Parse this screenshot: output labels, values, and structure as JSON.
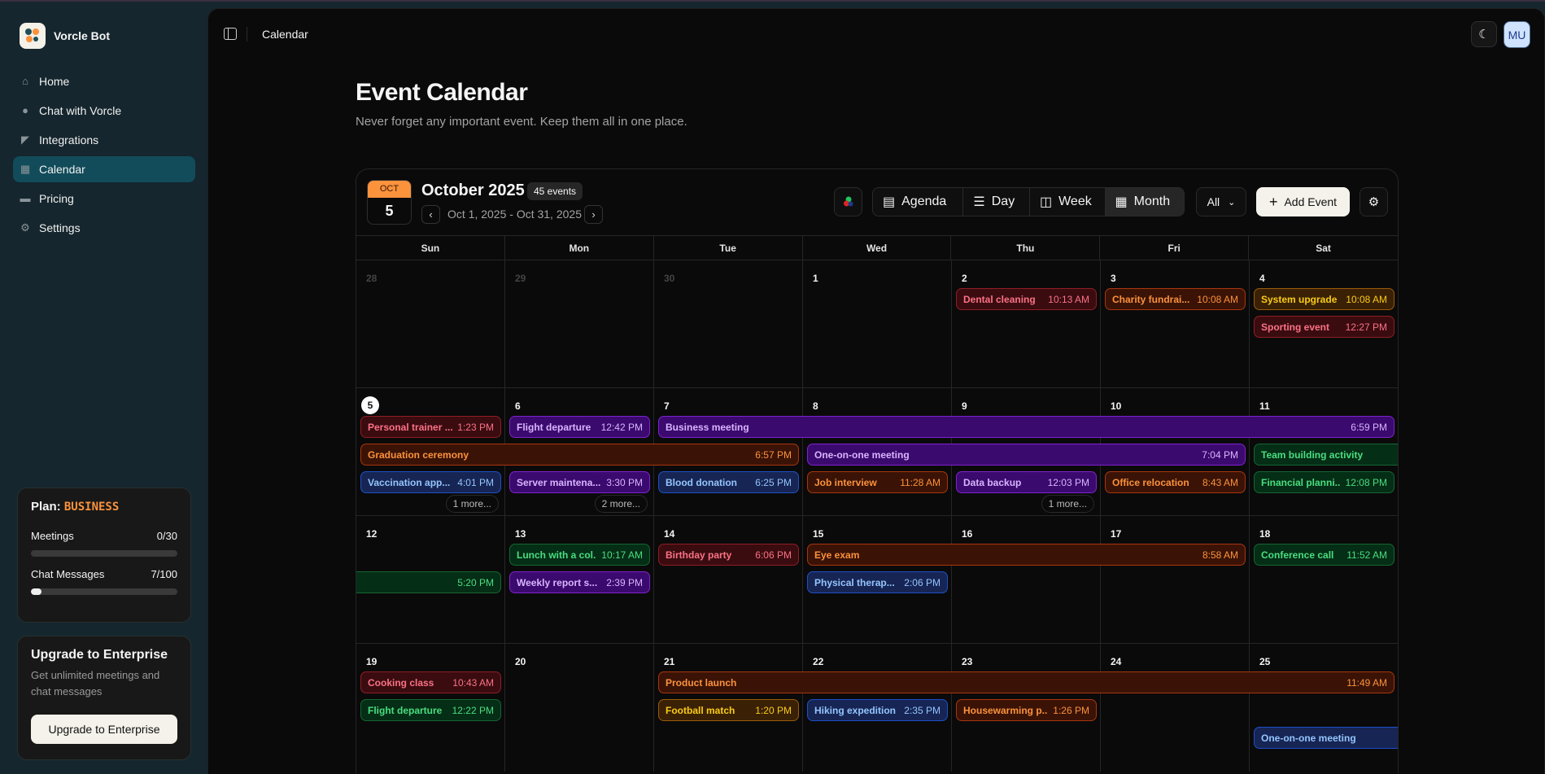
{
  "sidebar": {
    "brand": "Vorcle Bot",
    "items": [
      {
        "label": "Home",
        "icon": "home-icon",
        "active": false
      },
      {
        "label": "Chat with Vorcle",
        "icon": "chat-icon",
        "active": false
      },
      {
        "label": "Integrations",
        "icon": "integrations-icon",
        "active": false
      },
      {
        "label": "Calendar",
        "icon": "calendar-icon",
        "active": true
      },
      {
        "label": "Pricing",
        "icon": "wallet-icon",
        "active": false
      },
      {
        "label": "Settings",
        "icon": "gear-icon",
        "active": false
      }
    ],
    "plan": {
      "label": "Plan:",
      "name": "BUSINESS",
      "meetings": {
        "label": "Meetings",
        "value": "0/30",
        "fraction": 0
      },
      "chat": {
        "label": "Chat Messages",
        "value": "7/100",
        "fraction": 0.07
      }
    },
    "upgrade": {
      "title": "Upgrade to Enterprise",
      "description": "Get unlimited meetings and chat messages",
      "button": "Upgrade to Enterprise"
    }
  },
  "topbar": {
    "breadcrumb": "Calendar",
    "avatar": "MU",
    "theme_icon": "moon-icon"
  },
  "page": {
    "title": "Event Calendar",
    "subtitle": "Never forget any important event. Keep them all in one place."
  },
  "calendar": {
    "badge_month": "OCT",
    "badge_day": "5",
    "title": "October 2025",
    "event_count": "45 events",
    "range": "Oct 1, 2025 - Oct 31, 2025",
    "views": [
      {
        "label": "Agenda",
        "icon": "calendar-icon"
      },
      {
        "label": "Day",
        "icon": "list-icon"
      },
      {
        "label": "Week",
        "icon": "columns-icon"
      },
      {
        "label": "Month",
        "icon": "grid-icon"
      }
    ],
    "active_view": "Month",
    "filter": "All",
    "add_label": "Add Event",
    "weekdays": [
      "Sun",
      "Mon",
      "Tue",
      "Wed",
      "Thu",
      "Fri",
      "Sat"
    ],
    "today": "5",
    "weeks": [
      [
        {
          "d": "28",
          "muted": true
        },
        {
          "d": "29",
          "muted": true
        },
        {
          "d": "30",
          "muted": true
        },
        {
          "d": "1"
        },
        {
          "d": "2"
        },
        {
          "d": "3"
        },
        {
          "d": "4"
        }
      ],
      [
        {
          "d": "5"
        },
        {
          "d": "6"
        },
        {
          "d": "7"
        },
        {
          "d": "8"
        },
        {
          "d": "9"
        },
        {
          "d": "10"
        },
        {
          "d": "11"
        }
      ],
      [
        {
          "d": "12"
        },
        {
          "d": "13"
        },
        {
          "d": "14"
        },
        {
          "d": "15"
        },
        {
          "d": "16"
        },
        {
          "d": "17"
        },
        {
          "d": "18"
        }
      ],
      [
        {
          "d": "19"
        },
        {
          "d": "20"
        },
        {
          "d": "21"
        },
        {
          "d": "22"
        },
        {
          "d": "23"
        },
        {
          "d": "24"
        },
        {
          "d": "25"
        }
      ]
    ],
    "colors": {
      "red": {
        "bg": "#3a0c10",
        "border": "#8f1d24",
        "text": "#fb7185"
      },
      "orange": {
        "bg": "#3b1306",
        "border": "#a8360e",
        "text": "#fb923c"
      },
      "yellow": {
        "bg": "#3a2106",
        "border": "#9a5a0a",
        "text": "#facc15"
      },
      "purple": {
        "bg": "#3b0a6e",
        "border": "#7e22ce",
        "text": "#d8b4fe"
      },
      "blue": {
        "bg": "#172554",
        "border": "#1e4fc7",
        "text": "#93c5fd"
      },
      "green": {
        "bg": "#052e16",
        "border": "#166534",
        "text": "#4ade80"
      }
    },
    "events": [
      {
        "title": "Dental cleaning",
        "time": "10:13 AM",
        "start": "2",
        "end": "2",
        "color": "red"
      },
      {
        "title": "Charity fundrai...",
        "time": "10:08 AM",
        "start": "3",
        "end": "3",
        "color": "orange"
      },
      {
        "title": "System upgrade",
        "time": "10:08 AM",
        "start": "4",
        "end": "4",
        "color": "yellow"
      },
      {
        "title": "Sporting event",
        "time": "12:27 PM",
        "start": "4",
        "end": "4",
        "color": "red"
      },
      {
        "title": "Personal trainer ...",
        "time": "1:23 PM",
        "start": "5",
        "end": "5",
        "color": "red"
      },
      {
        "title": "Flight departure",
        "time": "12:42 PM",
        "start": "6",
        "end": "6",
        "color": "purple"
      },
      {
        "title": "Business meeting",
        "time": "6:59 PM",
        "start": "7",
        "end": "11",
        "color": "purple"
      },
      {
        "title": "Graduation ceremony",
        "time": "6:57 PM",
        "start": "5",
        "end": "7",
        "color": "orange"
      },
      {
        "title": "One-on-one meeting",
        "time": "7:04 PM",
        "start": "8",
        "end": "10",
        "color": "purple"
      },
      {
        "title": "Team building activity",
        "time": "5:20 PM",
        "start": "11",
        "end": "12",
        "color": "green"
      },
      {
        "title": "Vaccination app...",
        "time": "4:01 PM",
        "start": "5",
        "end": "5",
        "color": "blue"
      },
      {
        "title": "Server maintena...",
        "time": "3:30 PM",
        "start": "6",
        "end": "6",
        "color": "purple"
      },
      {
        "title": "Blood donation",
        "time": "6:25 PM",
        "start": "7",
        "end": "7",
        "color": "blue"
      },
      {
        "title": "Job interview",
        "time": "11:28 AM",
        "start": "8",
        "end": "8",
        "color": "orange"
      },
      {
        "title": "Data backup",
        "time": "12:03 PM",
        "start": "9",
        "end": "9",
        "color": "purple"
      },
      {
        "title": "Office relocation",
        "time": "8:43 AM",
        "start": "10",
        "end": "10",
        "color": "orange"
      },
      {
        "title": "Financial planni...",
        "time": "12:08 PM",
        "start": "11",
        "end": "11",
        "color": "green"
      },
      {
        "title": "Lunch with a col...",
        "time": "10:17 AM",
        "start": "13",
        "end": "13",
        "color": "green"
      },
      {
        "title": "Birthday party",
        "time": "6:06 PM",
        "start": "14",
        "end": "14",
        "color": "red"
      },
      {
        "title": "Eye exam",
        "time": "8:58 AM",
        "start": "15",
        "end": "17",
        "color": "orange"
      },
      {
        "title": "Conference call",
        "time": "11:52 AM",
        "start": "18",
        "end": "18",
        "color": "green"
      },
      {
        "title": "Weekly report s...",
        "time": "2:39 PM",
        "start": "13",
        "end": "13",
        "color": "purple"
      },
      {
        "title": "Physical therap...",
        "time": "2:06 PM",
        "start": "15",
        "end": "15",
        "color": "blue"
      },
      {
        "title": "Cooking class",
        "time": "10:43 AM",
        "start": "19",
        "end": "19",
        "color": "red"
      },
      {
        "title": "Product launch",
        "time": "11:49 AM",
        "start": "21",
        "end": "25",
        "color": "orange"
      },
      {
        "title": "Flight departure",
        "time": "12:22 PM",
        "start": "19",
        "end": "19",
        "color": "green"
      },
      {
        "title": "Football match",
        "time": "1:20 PM",
        "start": "21",
        "end": "21",
        "color": "yellow"
      },
      {
        "title": "Hiking expedition",
        "time": "2:35 PM",
        "start": "22",
        "end": "22",
        "color": "blue"
      },
      {
        "title": "Housewarming p...",
        "time": "1:26 PM",
        "start": "23",
        "end": "23",
        "color": "orange"
      },
      {
        "title": "One-on-one meeting",
        "time": "",
        "start": "25",
        "end": "25",
        "color": "blue",
        "continues": true
      }
    ],
    "more": [
      {
        "day": "5",
        "label": "1 more..."
      },
      {
        "day": "6",
        "label": "2 more..."
      },
      {
        "day": "9",
        "label": "1 more..."
      }
    ]
  }
}
